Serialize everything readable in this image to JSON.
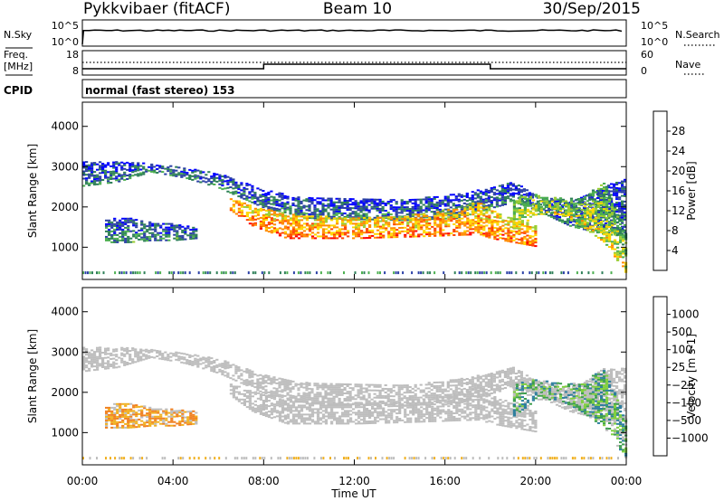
{
  "header": {
    "station": "Pykkvibaer (fitACF)",
    "beam": "Beam 10",
    "date": "30/Sep/2015"
  },
  "panels": {
    "nsky_label": "N.Sky",
    "nsearch_label": "N.Search",
    "nsky_ticks": [
      "10^5",
      "10^0"
    ],
    "nsearch_ticks": [
      "10^5",
      "10^0"
    ],
    "freq_label": "Freq.",
    "freq_unit": "[MHz]",
    "freq_ticks": [
      "18",
      "8"
    ],
    "nave_label": "Nave",
    "nave_ticks": [
      "60",
      "0"
    ],
    "cpid_label": "CPID",
    "cpid_text": "normal (fast stereo) 153"
  },
  "colors": {
    "power_scale": [
      "#0000ff",
      "#2a3fa5",
      "#2e7f58",
      "#4caf50",
      "#9acd32",
      "#ffd700",
      "#ff8c00",
      "#ff4500",
      "#ff0000"
    ],
    "velocity_scale": [
      "#1f3fa8",
      "#2e7f9e",
      "#3f9f4f",
      "#7fcf3f",
      "#bbbbbb",
      "#f0b020",
      "#f08020",
      "#f04020",
      "#ff0000"
    ],
    "ground_scatter": "#bdbdbd"
  },
  "chart_data": [
    {
      "type": "heatmap",
      "panel": "power",
      "ylabel": "Slant Range [km]",
      "xlabel": "Time UT",
      "x_ticks": [
        "00:00",
        "04:00",
        "08:00",
        "12:00",
        "16:00",
        "20:00",
        "00:00"
      ],
      "y_ticks": [
        1000,
        2000,
        3000,
        4000
      ],
      "ylim": [
        200,
        4600
      ],
      "colorbar_label": "Power [dB]",
      "colorbar_ticks": [
        4,
        8,
        12,
        16,
        20,
        24,
        28
      ],
      "colorbar_range": [
        0,
        32
      ],
      "scatter_bands": [
        {
          "t": [
            0.0,
            1.5,
            3.0,
            4.5,
            6.0,
            7.0,
            8.0,
            10.0,
            14.0,
            16.5,
            18.0,
            19.0,
            20.0,
            21.5,
            23.0,
            24.0
          ],
          "low": [
            2500,
            2600,
            2850,
            2700,
            2450,
            2200,
            1950,
            1700,
            1650,
            1700,
            1950,
            2100,
            1900,
            1500,
            1300,
            1250
          ],
          "high": [
            3100,
            3100,
            3050,
            2950,
            2800,
            2600,
            2400,
            2200,
            2150,
            2300,
            2450,
            2600,
            2250,
            2100,
            2500,
            2700
          ],
          "power": 9
        },
        {
          "t": [
            6.5,
            7.5,
            9.0,
            12.0,
            15.0,
            17.5,
            18.0,
            19.0,
            20.0
          ],
          "low": [
            1900,
            1500,
            1200,
            1200,
            1250,
            1300,
            1200,
            1100,
            1000
          ],
          "high": [
            2200,
            2000,
            1800,
            1700,
            1800,
            2100,
            1900,
            1700,
            1500
          ],
          "power": 25
        },
        {
          "t": [
            1.0,
            2.0,
            3.0,
            4.0,
            5.0
          ],
          "low": [
            1100,
            1100,
            1150,
            1150,
            1200
          ],
          "high": [
            1700,
            1700,
            1600,
            1550,
            1500
          ],
          "power": 10
        },
        {
          "t": [
            19.0,
            20.0,
            21.0,
            22.0,
            23.0,
            24.0
          ],
          "low": [
            1400,
            1800,
            1800,
            1500,
            1100,
            300
          ],
          "high": [
            2200,
            2300,
            2200,
            2200,
            2600,
            1200
          ],
          "power": 18
        }
      ]
    },
    {
      "type": "heatmap",
      "panel": "velocity",
      "ylabel": "Slant Range [km]",
      "xlabel": "Time UT",
      "x_ticks": [
        "00:00",
        "04:00",
        "08:00",
        "12:00",
        "16:00",
        "20:00",
        "00:00"
      ],
      "y_ticks": [
        1000,
        2000,
        3000,
        4000
      ],
      "ylim": [
        200,
        4600
      ],
      "colorbar_label": "Velocity [m s-1]",
      "colorbar_ticks": [
        "1000",
        "500",
        "100",
        "25",
        "−25",
        "−100",
        "−500",
        "−1000"
      ],
      "scatter_bands": [
        {
          "t": [
            0.0,
            1.5,
            3.0,
            4.5,
            6.0,
            7.0,
            8.0,
            10.0,
            14.0,
            16.5,
            18.0,
            19.0,
            20.0,
            21.5,
            23.0,
            24.0
          ],
          "low": [
            2500,
            2600,
            2850,
            2700,
            2450,
            2200,
            1950,
            1700,
            1650,
            1700,
            1950,
            2100,
            1900,
            1500,
            1300,
            1250
          ],
          "high": [
            3100,
            3100,
            3050,
            2950,
            2800,
            2600,
            2400,
            2200,
            2150,
            2300,
            2450,
            2600,
            2250,
            2100,
            2500,
            2700
          ],
          "kind": "ground"
        },
        {
          "t": [
            6.5,
            7.5,
            9.0,
            12.0,
            15.0,
            17.5,
            18.0,
            19.0,
            20.0
          ],
          "low": [
            1900,
            1500,
            1200,
            1200,
            1250,
            1300,
            1200,
            1100,
            1000
          ],
          "high": [
            2200,
            2000,
            1800,
            1700,
            1800,
            2100,
            1900,
            1700,
            1500
          ],
          "kind": "ground"
        },
        {
          "t": [
            1.0,
            2.0,
            3.0,
            4.0,
            5.0
          ],
          "low": [
            1100,
            1100,
            1150,
            1150,
            1200
          ],
          "high": [
            1700,
            1700,
            1600,
            1550,
            1500
          ],
          "kind": "ionospheric",
          "velocity": -100
        },
        {
          "t": [
            19.0,
            20.0,
            21.0,
            22.0,
            23.0,
            24.0
          ],
          "low": [
            1400,
            1800,
            1800,
            1500,
            1100,
            300
          ],
          "high": [
            2200,
            2300,
            2200,
            2200,
            2600,
            1200
          ],
          "kind": "ionospheric",
          "velocity": 300
        }
      ]
    }
  ]
}
